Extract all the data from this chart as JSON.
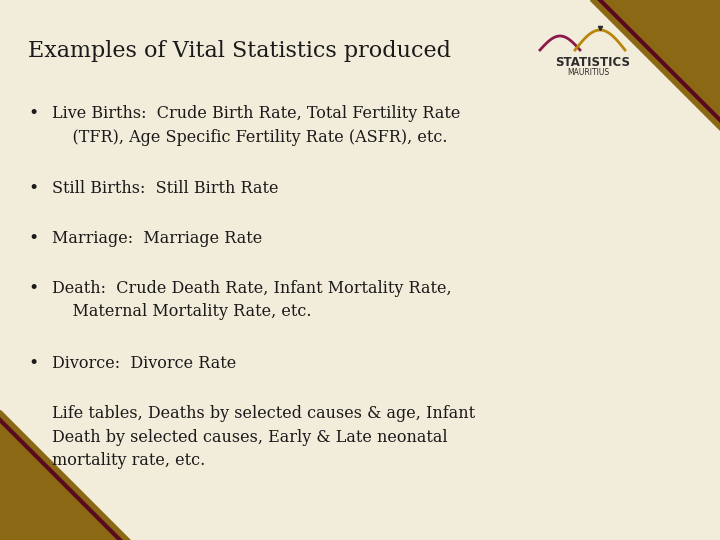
{
  "bg_color": "#f2ecda",
  "text_color": "#1a1a1a",
  "title": "Examples of Vital Statistics produced",
  "title_fontsize": 16,
  "bullet_fontsize": 11.5,
  "body_fontsize": 11.5,
  "bullets": [
    "Live Births:  Crude Birth Rate, Total Fertility Rate\n    (TFR), Age Specific Fertility Rate (ASFR), etc.",
    "Still Births:  Still Birth Rate",
    "Marriage:  Marriage Rate",
    "Death:  Crude Death Rate, Infant Mortality Rate,\n    Maternal Mortality Rate, etc.",
    "Divorce:  Divorce Rate"
  ],
  "paragraph": "Life tables, Deaths by selected causes & age, Infant\nDeath by selected causes, Early & Late neonatal\nmortality rate, etc.",
  "corner_gold": "#8B6914",
  "corner_maroon": "#5a0a1e",
  "logo_maroon": "#8B1A4A",
  "logo_gold": "#B8860B",
  "stats_color": "#2b2b2b"
}
